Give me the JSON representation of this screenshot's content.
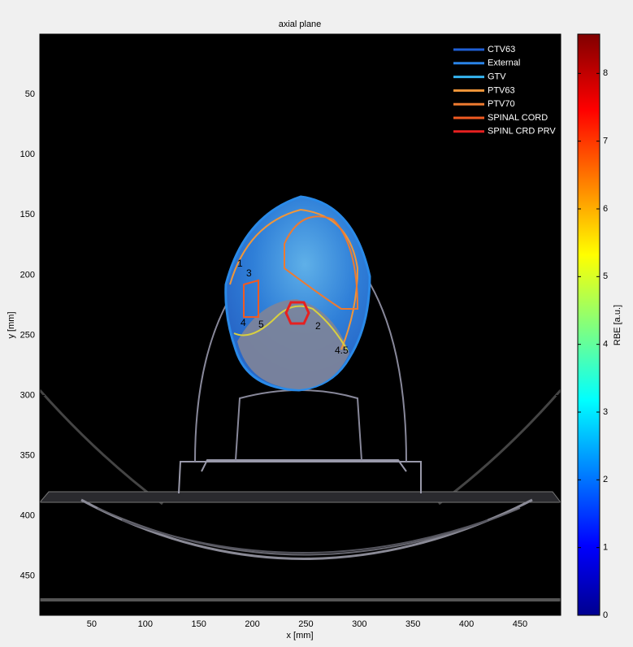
{
  "chart_data": {
    "type": "image",
    "title": "axial plane",
    "x_label": "x [mm]",
    "y_label": "y [mm]",
    "xlim": [
      1.5,
      488
    ],
    "ylim": [
      0,
      482.5
    ],
    "y_reversed": true,
    "xticks": [
      50,
      100,
      150,
      200,
      250,
      300,
      350,
      400,
      450
    ],
    "yticks": [
      50,
      100,
      150,
      200,
      250,
      300,
      350,
      400,
      450
    ],
    "series": [
      {
        "name": "CTV63",
        "color": "#1f5fd6"
      },
      {
        "name": "External",
        "color": "#2a84e8"
      },
      {
        "name": "GTV",
        "color": "#35b4f0"
      },
      {
        "name": "PTV63",
        "color": "#f0963a"
      },
      {
        "name": "PTV70",
        "color": "#ee7a30"
      },
      {
        "name": "SPINAL CORD",
        "color": "#f05a22"
      },
      {
        "name": "SPINL CRD PRV",
        "color": "#e62020"
      }
    ],
    "legend": "upper right",
    "contour_labels": [
      "1",
      "3",
      "4",
      "5",
      "2",
      "4.5"
    ],
    "colorbar": {
      "label": "RBE [a.u.]",
      "lim": [
        0,
        8.58
      ],
      "ticks": [
        0,
        1,
        2,
        3,
        4,
        5,
        6,
        7,
        8
      ],
      "colormap": "jet"
    }
  }
}
